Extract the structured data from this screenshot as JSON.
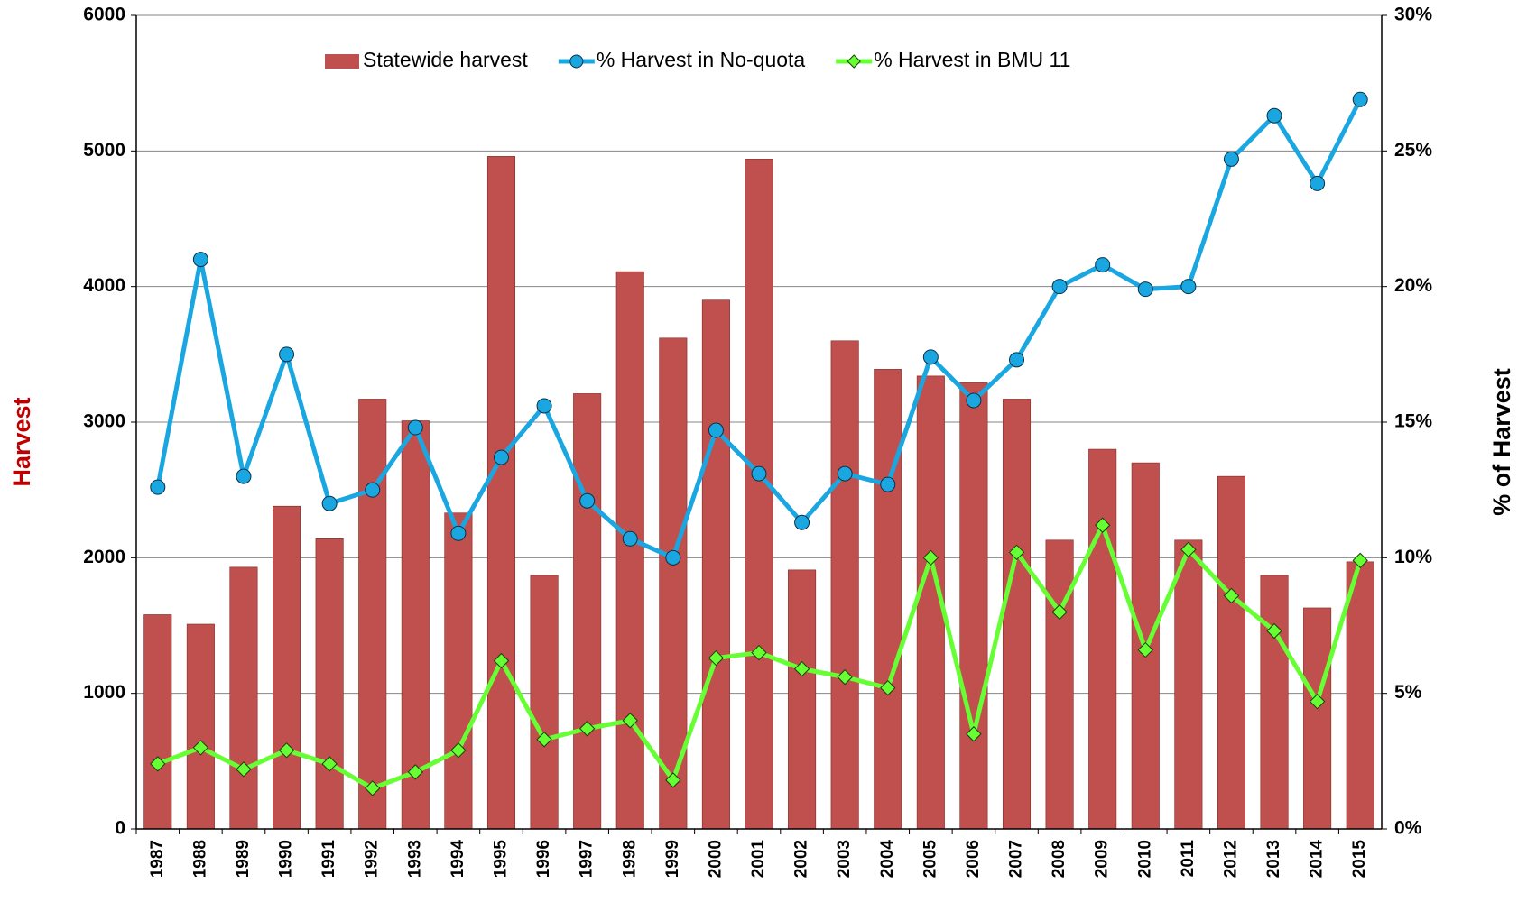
{
  "chart_data": {
    "type": "bar",
    "y_label": "Harvest",
    "y2_label": "% of Harvest",
    "categories": [
      "1987",
      "1988",
      "1989",
      "1990",
      "1991",
      "1992",
      "1993",
      "1994",
      "1995",
      "1996",
      "1997",
      "1998",
      "1999",
      "2000",
      "2001",
      "2002",
      "2003",
      "2004",
      "2005",
      "2006",
      "2007",
      "2008",
      "2009",
      "2010",
      "2011",
      "2012",
      "2013",
      "2014",
      "2015"
    ],
    "series": [
      {
        "name": "Statewide harvest",
        "type": "bar",
        "color": "#c0504d",
        "values": [
          1580,
          1510,
          1930,
          2380,
          2140,
          3170,
          3010,
          2330,
          4960,
          1870,
          3210,
          4110,
          3620,
          3900,
          4940,
          1910,
          3600,
          3390,
          3340,
          3290,
          3170,
          2130,
          2800,
          2700,
          2130,
          2600,
          1870,
          1630,
          1970
        ]
      },
      {
        "name": "% Harvest in No-quota",
        "type": "line",
        "marker": "circle",
        "axis": "y2",
        "color": "#1aa7e1",
        "values": [
          12.6,
          21.0,
          13.0,
          17.5,
          12.0,
          12.5,
          14.8,
          10.9,
          13.7,
          15.6,
          12.1,
          10.7,
          10.0,
          14.7,
          13.1,
          11.3,
          13.1,
          12.7,
          17.4,
          15.8,
          17.3,
          20.0,
          20.8,
          19.9,
          20.0,
          24.7,
          26.3,
          23.8,
          26.9
        ]
      },
      {
        "name": "% Harvest in BMU 11",
        "type": "line",
        "marker": "diamond",
        "axis": "y2",
        "color": "#66ff33",
        "values": [
          2.4,
          3.0,
          2.2,
          2.9,
          2.4,
          1.5,
          2.1,
          2.9,
          6.2,
          3.3,
          3.7,
          4.0,
          1.8,
          6.3,
          6.5,
          5.9,
          5.6,
          5.2,
          10.0,
          3.5,
          10.2,
          8.0,
          11.2,
          6.6,
          10.3,
          8.6,
          7.3,
          4.7,
          9.9
        ]
      }
    ],
    "ylim": [
      0,
      6000
    ],
    "yticks": [
      0,
      1000,
      2000,
      3000,
      4000,
      5000,
      6000
    ],
    "y2lim": [
      0,
      30
    ],
    "y2ticks": [
      {
        "value": 0,
        "label": "0%"
      },
      {
        "value": 5,
        "label": "5%"
      },
      {
        "value": 10,
        "label": "10%"
      },
      {
        "value": 15,
        "label": "15%"
      },
      {
        "value": 20,
        "label": "20%"
      },
      {
        "value": 25,
        "label": "25%"
      },
      {
        "value": 30,
        "label": "30%"
      }
    ],
    "grid": true,
    "legend": "top"
  }
}
